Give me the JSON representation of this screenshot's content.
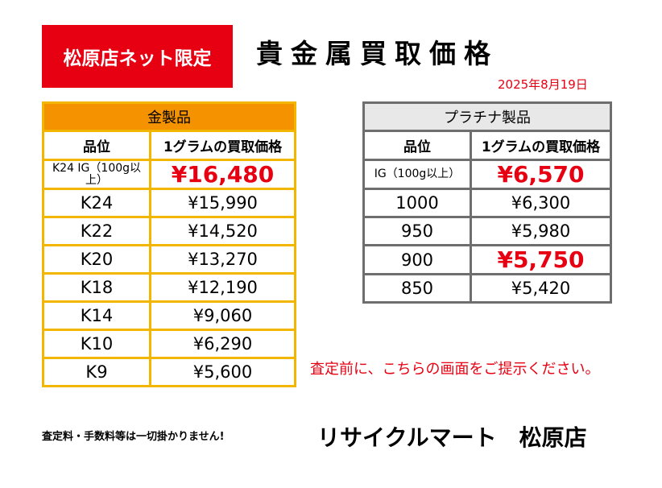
{
  "header": {
    "badge": "松原店ネット限定",
    "title": "貴金属買取価格",
    "date": "2025年8月19日"
  },
  "gold": {
    "title": "金製品",
    "col_grade": "品位",
    "col_price": "1グラムの買取価格",
    "rows": [
      {
        "grade": "K24 IG（100g以上）",
        "price": "¥16,480"
      },
      {
        "grade": "K24",
        "price": "¥15,990"
      },
      {
        "grade": "K22",
        "price": "¥14,520"
      },
      {
        "grade": "K20",
        "price": "¥13,270"
      },
      {
        "grade": "K18",
        "price": "¥12,190"
      },
      {
        "grade": "K14",
        "price": "¥9,060"
      },
      {
        "grade": "K10",
        "price": "¥6,290"
      },
      {
        "grade": "K9",
        "price": "¥5,600"
      }
    ]
  },
  "platinum": {
    "title": "プラチナ製品",
    "col_grade": "品位",
    "col_price": "1グラムの買取価格",
    "rows": [
      {
        "grade": "IG（100g以上）",
        "price": "¥6,570"
      },
      {
        "grade": "1000",
        "price": "¥6,300"
      },
      {
        "grade": "950",
        "price": "¥5,980"
      },
      {
        "grade": "900",
        "price": "¥5,750"
      },
      {
        "grade": "850",
        "price": "¥5,420"
      }
    ]
  },
  "notice": "査定前に、こちらの画面をご提示ください。",
  "footer": {
    "fees": "査定料・手数料等は一切掛かりません!",
    "store": "リサイクルマート　松原店"
  },
  "colors": {
    "red": "#e60012",
    "gold_header": "#f59200",
    "gold_border": "#f2b600",
    "platinum_border": "#6e6e6e"
  }
}
